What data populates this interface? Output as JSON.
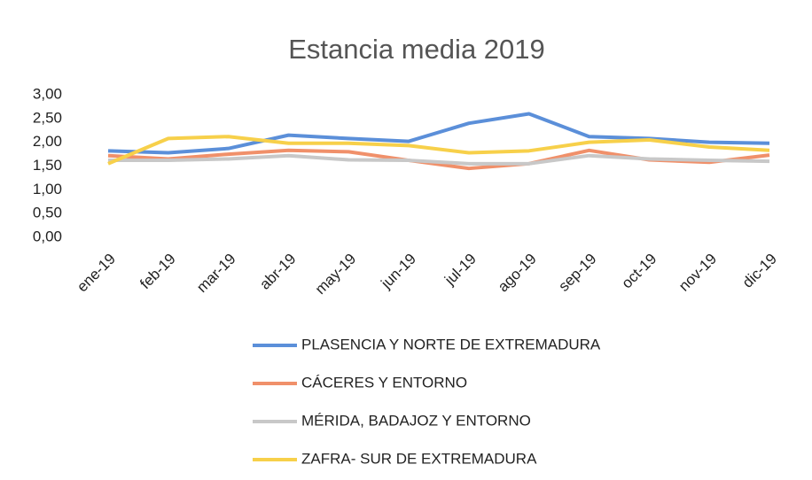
{
  "chart_data": {
    "type": "line",
    "title": "Estancia media 2019",
    "categories": [
      "ene-19",
      "feb-19",
      "mar-19",
      "abr-19",
      "may-19",
      "jun-19",
      "jul-19",
      "ago-19",
      "sep-19",
      "oct-19",
      "nov-19",
      "dic-19"
    ],
    "series": [
      {
        "name": "PLASENCIA Y NORTE DE EXTREMADURA",
        "color": "#5b8fd9",
        "values": [
          1.82,
          1.78,
          1.87,
          2.15,
          2.08,
          2.02,
          2.4,
          2.6,
          2.12,
          2.08,
          2.0,
          1.98
        ]
      },
      {
        "name": "CÁCERES Y ENTORNO",
        "color": "#f0906a",
        "values": [
          1.72,
          1.65,
          1.75,
          1.83,
          1.8,
          1.62,
          1.45,
          1.55,
          1.83,
          1.63,
          1.58,
          1.73
        ]
      },
      {
        "name": "MÉRIDA, BADAJOZ Y ENTORNO",
        "color": "#c8c8c8",
        "values": [
          1.62,
          1.62,
          1.65,
          1.72,
          1.63,
          1.62,
          1.55,
          1.55,
          1.72,
          1.65,
          1.62,
          1.6
        ]
      },
      {
        "name": "ZAFRA- SUR DE EXTREMADURA",
        "color": "#f7d04a",
        "values": [
          1.55,
          2.08,
          2.12,
          1.98,
          1.98,
          1.93,
          1.78,
          1.82,
          2.0,
          2.05,
          1.9,
          1.83
        ]
      }
    ],
    "ylim": [
      0,
      3
    ],
    "yticks": [
      {
        "value": 0,
        "label": "0,00"
      },
      {
        "value": 0.5,
        "label": "0,50"
      },
      {
        "value": 1,
        "label": "1,00"
      },
      {
        "value": 1.5,
        "label": "1,50"
      },
      {
        "value": 2,
        "label": "2,00"
      },
      {
        "value": 2.5,
        "label": "2,50"
      },
      {
        "value": 3,
        "label": "3,00"
      }
    ],
    "grid": false
  }
}
